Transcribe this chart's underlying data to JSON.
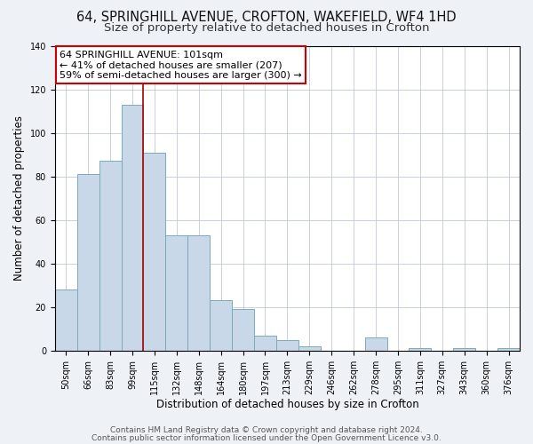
{
  "title_line1": "64, SPRINGHILL AVENUE, CROFTON, WAKEFIELD, WF4 1HD",
  "title_line2": "Size of property relative to detached houses in Crofton",
  "xlabel": "Distribution of detached houses by size in Crofton",
  "ylabel": "Number of detached properties",
  "bar_labels": [
    "50sqm",
    "66sqm",
    "83sqm",
    "99sqm",
    "115sqm",
    "132sqm",
    "148sqm",
    "164sqm",
    "180sqm",
    "197sqm",
    "213sqm",
    "229sqm",
    "246sqm",
    "262sqm",
    "278sqm",
    "295sqm",
    "311sqm",
    "327sqm",
    "343sqm",
    "360sqm",
    "376sqm"
  ],
  "bar_values": [
    28,
    81,
    87,
    113,
    91,
    53,
    53,
    23,
    19,
    7,
    5,
    2,
    0,
    0,
    6,
    0,
    1,
    0,
    1,
    0,
    1
  ],
  "bar_color": "#c8d8e8",
  "bar_edge_color": "#7aaabb",
  "ylim": [
    0,
    140
  ],
  "yticks": [
    0,
    20,
    40,
    60,
    80,
    100,
    120,
    140
  ],
  "vline_x": 3.5,
  "vline_color": "#aa0000",
  "annotation_line1": "64 SPRINGHILL AVENUE: 101sqm",
  "annotation_line2": "← 41% of detached houses are smaller (207)",
  "annotation_line3": "59% of semi-detached houses are larger (300) →",
  "annotation_box_edge_color": "#cc0000",
  "annotation_box_facecolor": "#ffffff",
  "footnote_line1": "Contains HM Land Registry data © Crown copyright and database right 2024.",
  "footnote_line2": "Contains public sector information licensed under the Open Government Licence v3.0.",
  "background_color": "#eef2f7",
  "plot_bg_color": "#ffffff",
  "title_fontsize": 10.5,
  "subtitle_fontsize": 9.5,
  "axis_label_fontsize": 8.5,
  "tick_fontsize": 7,
  "annotation_fontsize": 8,
  "footnote_fontsize": 6.5
}
